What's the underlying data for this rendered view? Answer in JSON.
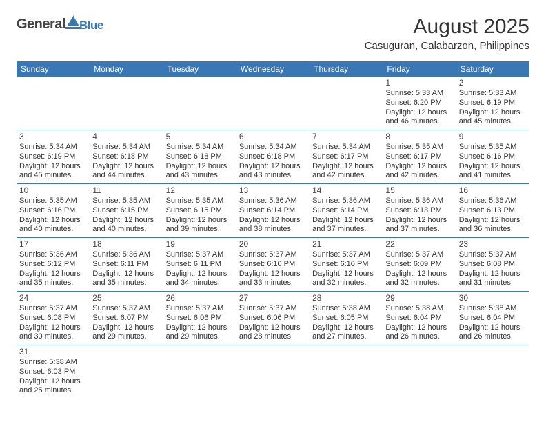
{
  "brand": {
    "text_main": "General",
    "text_sub": "Blue",
    "color_main": "#444444",
    "color_sub": "#3a78b5"
  },
  "title": "August 2025",
  "location": "Casuguran, Calabarzon, Philippines",
  "styling": {
    "header_bg": "#3a78b5",
    "header_text_color": "#ffffff",
    "cell_border_color": "#3a78b5",
    "body_font_size": 11,
    "daynum_font_size": 12,
    "header_font_size": 12,
    "title_font_size": 30,
    "location_font_size": 15,
    "background_color": "#ffffff",
    "text_color": "#333333"
  },
  "weekdays": [
    "Sunday",
    "Monday",
    "Tuesday",
    "Wednesday",
    "Thursday",
    "Friday",
    "Saturday"
  ],
  "weeks": [
    [
      null,
      null,
      null,
      null,
      null,
      {
        "day": "1",
        "sunrise": "Sunrise: 5:33 AM",
        "sunset": "Sunset: 6:20 PM",
        "daylight": "Daylight: 12 hours and 46 minutes."
      },
      {
        "day": "2",
        "sunrise": "Sunrise: 5:33 AM",
        "sunset": "Sunset: 6:19 PM",
        "daylight": "Daylight: 12 hours and 45 minutes."
      }
    ],
    [
      {
        "day": "3",
        "sunrise": "Sunrise: 5:34 AM",
        "sunset": "Sunset: 6:19 PM",
        "daylight": "Daylight: 12 hours and 45 minutes."
      },
      {
        "day": "4",
        "sunrise": "Sunrise: 5:34 AM",
        "sunset": "Sunset: 6:18 PM",
        "daylight": "Daylight: 12 hours and 44 minutes."
      },
      {
        "day": "5",
        "sunrise": "Sunrise: 5:34 AM",
        "sunset": "Sunset: 6:18 PM",
        "daylight": "Daylight: 12 hours and 43 minutes."
      },
      {
        "day": "6",
        "sunrise": "Sunrise: 5:34 AM",
        "sunset": "Sunset: 6:18 PM",
        "daylight": "Daylight: 12 hours and 43 minutes."
      },
      {
        "day": "7",
        "sunrise": "Sunrise: 5:34 AM",
        "sunset": "Sunset: 6:17 PM",
        "daylight": "Daylight: 12 hours and 42 minutes."
      },
      {
        "day": "8",
        "sunrise": "Sunrise: 5:35 AM",
        "sunset": "Sunset: 6:17 PM",
        "daylight": "Daylight: 12 hours and 42 minutes."
      },
      {
        "day": "9",
        "sunrise": "Sunrise: 5:35 AM",
        "sunset": "Sunset: 6:16 PM",
        "daylight": "Daylight: 12 hours and 41 minutes."
      }
    ],
    [
      {
        "day": "10",
        "sunrise": "Sunrise: 5:35 AM",
        "sunset": "Sunset: 6:16 PM",
        "daylight": "Daylight: 12 hours and 40 minutes."
      },
      {
        "day": "11",
        "sunrise": "Sunrise: 5:35 AM",
        "sunset": "Sunset: 6:15 PM",
        "daylight": "Daylight: 12 hours and 40 minutes."
      },
      {
        "day": "12",
        "sunrise": "Sunrise: 5:35 AM",
        "sunset": "Sunset: 6:15 PM",
        "daylight": "Daylight: 12 hours and 39 minutes."
      },
      {
        "day": "13",
        "sunrise": "Sunrise: 5:36 AM",
        "sunset": "Sunset: 6:14 PM",
        "daylight": "Daylight: 12 hours and 38 minutes."
      },
      {
        "day": "14",
        "sunrise": "Sunrise: 5:36 AM",
        "sunset": "Sunset: 6:14 PM",
        "daylight": "Daylight: 12 hours and 37 minutes."
      },
      {
        "day": "15",
        "sunrise": "Sunrise: 5:36 AM",
        "sunset": "Sunset: 6:13 PM",
        "daylight": "Daylight: 12 hours and 37 minutes."
      },
      {
        "day": "16",
        "sunrise": "Sunrise: 5:36 AM",
        "sunset": "Sunset: 6:13 PM",
        "daylight": "Daylight: 12 hours and 36 minutes."
      }
    ],
    [
      {
        "day": "17",
        "sunrise": "Sunrise: 5:36 AM",
        "sunset": "Sunset: 6:12 PM",
        "daylight": "Daylight: 12 hours and 35 minutes."
      },
      {
        "day": "18",
        "sunrise": "Sunrise: 5:36 AM",
        "sunset": "Sunset: 6:11 PM",
        "daylight": "Daylight: 12 hours and 35 minutes."
      },
      {
        "day": "19",
        "sunrise": "Sunrise: 5:37 AM",
        "sunset": "Sunset: 6:11 PM",
        "daylight": "Daylight: 12 hours and 34 minutes."
      },
      {
        "day": "20",
        "sunrise": "Sunrise: 5:37 AM",
        "sunset": "Sunset: 6:10 PM",
        "daylight": "Daylight: 12 hours and 33 minutes."
      },
      {
        "day": "21",
        "sunrise": "Sunrise: 5:37 AM",
        "sunset": "Sunset: 6:10 PM",
        "daylight": "Daylight: 12 hours and 32 minutes."
      },
      {
        "day": "22",
        "sunrise": "Sunrise: 5:37 AM",
        "sunset": "Sunset: 6:09 PM",
        "daylight": "Daylight: 12 hours and 32 minutes."
      },
      {
        "day": "23",
        "sunrise": "Sunrise: 5:37 AM",
        "sunset": "Sunset: 6:08 PM",
        "daylight": "Daylight: 12 hours and 31 minutes."
      }
    ],
    [
      {
        "day": "24",
        "sunrise": "Sunrise: 5:37 AM",
        "sunset": "Sunset: 6:08 PM",
        "daylight": "Daylight: 12 hours and 30 minutes."
      },
      {
        "day": "25",
        "sunrise": "Sunrise: 5:37 AM",
        "sunset": "Sunset: 6:07 PM",
        "daylight": "Daylight: 12 hours and 29 minutes."
      },
      {
        "day": "26",
        "sunrise": "Sunrise: 5:37 AM",
        "sunset": "Sunset: 6:06 PM",
        "daylight": "Daylight: 12 hours and 29 minutes."
      },
      {
        "day": "27",
        "sunrise": "Sunrise: 5:37 AM",
        "sunset": "Sunset: 6:06 PM",
        "daylight": "Daylight: 12 hours and 28 minutes."
      },
      {
        "day": "28",
        "sunrise": "Sunrise: 5:38 AM",
        "sunset": "Sunset: 6:05 PM",
        "daylight": "Daylight: 12 hours and 27 minutes."
      },
      {
        "day": "29",
        "sunrise": "Sunrise: 5:38 AM",
        "sunset": "Sunset: 6:04 PM",
        "daylight": "Daylight: 12 hours and 26 minutes."
      },
      {
        "day": "30",
        "sunrise": "Sunrise: 5:38 AM",
        "sunset": "Sunset: 6:04 PM",
        "daylight": "Daylight: 12 hours and 26 minutes."
      }
    ],
    [
      {
        "day": "31",
        "sunrise": "Sunrise: 5:38 AM",
        "sunset": "Sunset: 6:03 PM",
        "daylight": "Daylight: 12 hours and 25 minutes."
      },
      null,
      null,
      null,
      null,
      null,
      null
    ]
  ]
}
